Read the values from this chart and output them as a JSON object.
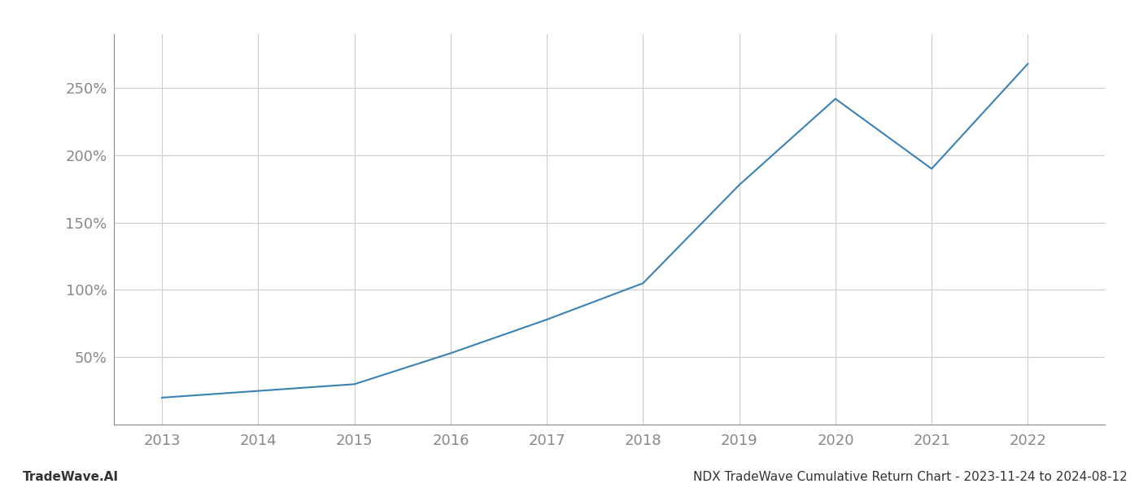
{
  "x_years": [
    2013,
    2014,
    2015,
    2016,
    2017,
    2018,
    2019,
    2020,
    2021,
    2022
  ],
  "y_values": [
    20,
    25,
    30,
    53,
    78,
    105,
    178,
    242,
    190,
    268
  ],
  "line_color": "#3a82b5",
  "line_width": 1.5,
  "background_color": "#ffffff",
  "grid_color": "#cccccc",
  "tick_color": "#888888",
  "footer_left": "TradeWave.AI",
  "footer_right": "NDX TradeWave Cumulative Return Chart - 2023-11-24 to 2024-08-12",
  "ylim": [
    0,
    290
  ],
  "yticks": [
    50,
    100,
    150,
    200,
    250
  ],
  "ytick_labels": [
    "50%",
    "100%",
    "150%",
    "200%",
    "250%"
  ],
  "xlim": [
    2012.5,
    2022.8
  ],
  "footer_fontsize": 11,
  "tick_fontsize": 13,
  "spine_color": "#888888"
}
